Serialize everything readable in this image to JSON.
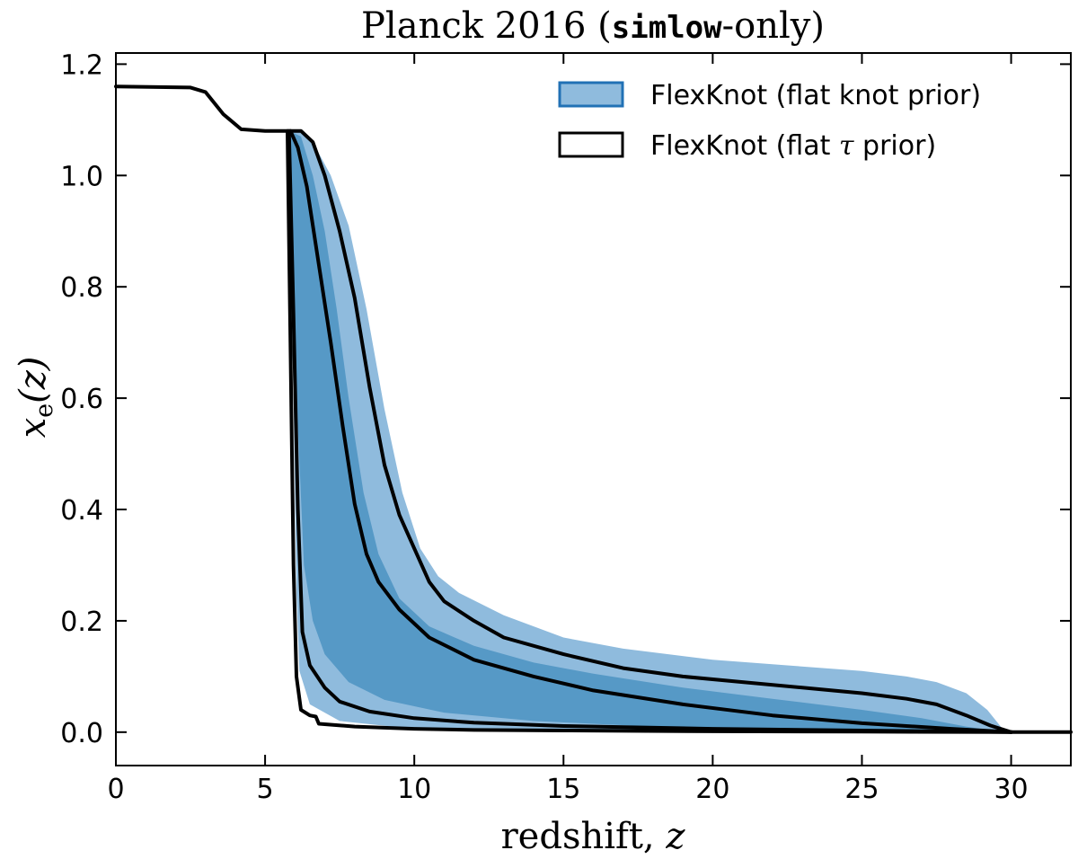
{
  "chart_data": {
    "type": "area",
    "title_prefix": "Planck 2016 (",
    "title_code": "simlow",
    "title_suffix": "-only)",
    "xlabel_text": "redshift, ",
    "xlabel_var": "z",
    "ylabel_var": "x",
    "ylabel_sub": "e",
    "ylabel_arg": "(z)",
    "xlim": [
      0,
      32
    ],
    "ylim": [
      -0.06,
      1.22
    ],
    "xticks": [
      0,
      5,
      10,
      15,
      20,
      25,
      30
    ],
    "xtick_labels": [
      "0",
      "5",
      "10",
      "15",
      "20",
      "25",
      "30"
    ],
    "yticks": [
      0.0,
      0.2,
      0.4,
      0.6,
      0.8,
      1.0,
      1.2
    ],
    "ytick_labels": [
      "0.0",
      "0.2",
      "0.4",
      "0.6",
      "0.8",
      "1.0",
      "1.2"
    ],
    "grid": false,
    "legend_position": "top-right",
    "legend": [
      {
        "label": "FlexKnot (flat knot prior)",
        "style": "filled"
      },
      {
        "label_prefix": "FlexKnot (flat ",
        "label_symbol": "τ",
        "label_suffix": " prior)",
        "style": "outline"
      }
    ],
    "colors": {
      "band_outer": "#8fbbdd",
      "band_inner": "#5699c6",
      "legend_edge": "#2171b5",
      "line": "#000000"
    },
    "series": [
      {
        "name": "FlexKnot (flat knot prior) outer band",
        "kind": "band",
        "upper": [
          [
            5.75,
            1.08
          ],
          [
            6.1,
            1.08
          ],
          [
            6.6,
            1.06
          ],
          [
            7.2,
            1.0
          ],
          [
            7.8,
            0.91
          ],
          [
            8.4,
            0.76
          ],
          [
            9.0,
            0.58
          ],
          [
            9.6,
            0.43
          ],
          [
            10.2,
            0.33
          ],
          [
            10.8,
            0.28
          ],
          [
            11.5,
            0.25
          ],
          [
            13,
            0.21
          ],
          [
            15,
            0.17
          ],
          [
            17,
            0.15
          ],
          [
            20,
            0.13
          ],
          [
            22.5,
            0.12
          ],
          [
            25,
            0.11
          ],
          [
            26.5,
            0.1
          ],
          [
            27.5,
            0.09
          ],
          [
            28.5,
            0.07
          ],
          [
            29.2,
            0.04
          ],
          [
            29.8,
            0.0
          ]
        ],
        "lower": [
          [
            5.75,
            1.08
          ],
          [
            5.95,
            0.6
          ],
          [
            6.05,
            0.25
          ],
          [
            6.15,
            0.11
          ],
          [
            6.5,
            0.05
          ],
          [
            7.5,
            0.02
          ],
          [
            10,
            0.006
          ],
          [
            15,
            0.002
          ],
          [
            20,
            0.001
          ],
          [
            25,
            0.0005
          ],
          [
            29.8,
            0.0
          ]
        ]
      },
      {
        "name": "FlexKnot (flat knot prior) inner band",
        "kind": "band",
        "upper": [
          [
            5.8,
            1.08
          ],
          [
            6.2,
            1.07
          ],
          [
            6.6,
            1.0
          ],
          [
            7.0,
            0.9
          ],
          [
            7.4,
            0.76
          ],
          [
            7.8,
            0.6
          ],
          [
            8.3,
            0.43
          ],
          [
            8.8,
            0.32
          ],
          [
            9.5,
            0.24
          ],
          [
            10.5,
            0.19
          ],
          [
            12,
            0.155
          ],
          [
            14,
            0.125
          ],
          [
            16,
            0.105
          ],
          [
            19,
            0.08
          ],
          [
            22,
            0.06
          ],
          [
            25,
            0.04
          ],
          [
            27,
            0.025
          ],
          [
            28.5,
            0.01
          ],
          [
            29.7,
            0.0
          ]
        ],
        "lower": [
          [
            5.8,
            1.08
          ],
          [
            6.1,
            0.55
          ],
          [
            6.3,
            0.3
          ],
          [
            6.6,
            0.2
          ],
          [
            7.0,
            0.14
          ],
          [
            7.8,
            0.09
          ],
          [
            9,
            0.058
          ],
          [
            11,
            0.035
          ],
          [
            14,
            0.02
          ],
          [
            18,
            0.01
          ],
          [
            22,
            0.005
          ],
          [
            26,
            0.002
          ],
          [
            29.7,
            0.0
          ]
        ]
      },
      {
        "name": "FlexKnot (flat tau prior) outer upper",
        "kind": "line",
        "points": [
          [
            0,
            1.16
          ],
          [
            2.5,
            1.158
          ],
          [
            3.0,
            1.15
          ],
          [
            3.6,
            1.11
          ],
          [
            4.2,
            1.083
          ],
          [
            5,
            1.08
          ],
          [
            5.9,
            1.08
          ],
          [
            6.2,
            1.08
          ],
          [
            6.6,
            1.06
          ],
          [
            7.0,
            1.0
          ],
          [
            7.5,
            0.9
          ],
          [
            8.0,
            0.78
          ],
          [
            8.5,
            0.62
          ],
          [
            9.0,
            0.48
          ],
          [
            9.5,
            0.39
          ],
          [
            10.0,
            0.33
          ],
          [
            10.5,
            0.27
          ],
          [
            11,
            0.235
          ],
          [
            12,
            0.2
          ],
          [
            13,
            0.17
          ],
          [
            15,
            0.14
          ],
          [
            17,
            0.115
          ],
          [
            19,
            0.1
          ],
          [
            21,
            0.09
          ],
          [
            23,
            0.08
          ],
          [
            25,
            0.07
          ],
          [
            26.5,
            0.06
          ],
          [
            27.5,
            0.05
          ],
          [
            28.5,
            0.03
          ],
          [
            29.3,
            0.012
          ],
          [
            30,
            0.0
          ],
          [
            32,
            0.0
          ]
        ]
      },
      {
        "name": "FlexKnot (flat tau prior) inner upper",
        "kind": "line",
        "points": [
          [
            5.85,
            1.08
          ],
          [
            6.1,
            1.05
          ],
          [
            6.4,
            0.98
          ],
          [
            6.8,
            0.84
          ],
          [
            7.2,
            0.7
          ],
          [
            7.6,
            0.55
          ],
          [
            8.0,
            0.41
          ],
          [
            8.4,
            0.32
          ],
          [
            8.8,
            0.27
          ],
          [
            9.5,
            0.22
          ],
          [
            10.5,
            0.17
          ],
          [
            12,
            0.13
          ],
          [
            14,
            0.1
          ],
          [
            16,
            0.075
          ],
          [
            19,
            0.05
          ],
          [
            22,
            0.03
          ],
          [
            25,
            0.016
          ],
          [
            28,
            0.006
          ],
          [
            30,
            0.0
          ]
        ]
      },
      {
        "name": "FlexKnot (flat tau prior) inner lower",
        "kind": "line",
        "points": [
          [
            5.8,
            1.08
          ],
          [
            5.95,
            0.75
          ],
          [
            6.1,
            0.4
          ],
          [
            6.25,
            0.18
          ],
          [
            6.5,
            0.12
          ],
          [
            7.0,
            0.08
          ],
          [
            7.5,
            0.055
          ],
          [
            8.5,
            0.037
          ],
          [
            10,
            0.025
          ],
          [
            12,
            0.017
          ],
          [
            15,
            0.011
          ],
          [
            20,
            0.006
          ],
          [
            25,
            0.003
          ],
          [
            30,
            0.0
          ]
        ]
      },
      {
        "name": "FlexKnot (flat tau prior) outer lower",
        "kind": "line",
        "points": [
          [
            5.75,
            1.08
          ],
          [
            5.85,
            0.7
          ],
          [
            5.95,
            0.3
          ],
          [
            6.05,
            0.1
          ],
          [
            6.2,
            0.04
          ],
          [
            6.5,
            0.03
          ],
          [
            6.7,
            0.028
          ],
          [
            6.8,
            0.015
          ],
          [
            8,
            0.01
          ],
          [
            10,
            0.006
          ],
          [
            12,
            0.004
          ],
          [
            15,
            0.003
          ],
          [
            20,
            0.0015
          ],
          [
            25,
            0.0008
          ],
          [
            30,
            0.0
          ]
        ]
      }
    ]
  }
}
